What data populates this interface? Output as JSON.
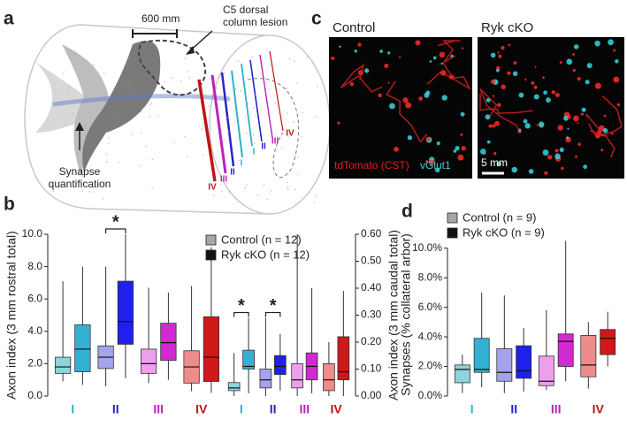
{
  "panel_labels": [
    "a",
    "b",
    "c",
    "d"
  ],
  "panel_a": {
    "scale_label": "600 mm",
    "lesion_label": "C5 dorsal column lesion",
    "synapse_label": "Synapse quantification",
    "section_labels": [
      "IV",
      "III",
      "II",
      "I",
      "I",
      "II",
      "III",
      "IV"
    ]
  },
  "panel_c": {
    "titles": [
      "Control",
      "Ryk cKO"
    ],
    "stain_labels": [
      "tdTomato (CST)",
      "vGlut1"
    ],
    "scale_bar": "5 mm"
  },
  "chart_data": [
    {
      "type": "box",
      "y_label": "Axon index (3 mm rostral total)",
      "y_axis_side": "left",
      "categories": [
        "I",
        "II",
        "III",
        "IV"
      ],
      "category_colors": [
        "#2bb3c6",
        "#2525c8",
        "#bb22bb",
        "#c01414"
      ],
      "ylim": [
        0,
        10
      ],
      "yticks": [
        {
          "value": 0,
          "label": "0.0"
        },
        {
          "value": 2,
          "label": "2.0"
        },
        {
          "value": 4,
          "label": "4.0"
        },
        {
          "value": 6,
          "label": "6.0"
        },
        {
          "value": 8,
          "label": "8.0"
        },
        {
          "value": 10,
          "label": "10.0"
        }
      ],
      "significance": [
        null,
        "*",
        null,
        null
      ],
      "series": [
        {
          "box_colors": [
            "#8fd3dc",
            "#a3a3ee",
            "#ec9fec",
            "#ee8c8c"
          ],
          "values": [
            {
              "min": 0.9,
              "q1": 1.4,
              "median": 1.8,
              "q3": 2.4,
              "max": 7.1
            },
            {
              "min": 0.6,
              "q1": 1.7,
              "median": 2.4,
              "q3": 3.1,
              "max": 8.0
            },
            {
              "min": 0.8,
              "q1": 1.4,
              "median": 2.0,
              "q3": 2.9,
              "max": 6.7
            },
            {
              "min": 0.3,
              "q1": 0.8,
              "median": 1.8,
              "q3": 2.8,
              "max": 6.8
            }
          ]
        },
        {
          "box_colors": [
            "#34b1d2",
            "#2020ee",
            "#d02ad0",
            "#d01818"
          ],
          "values": [
            {
              "min": 0.7,
              "q1": 1.5,
              "median": 2.9,
              "q3": 4.4,
              "max": 8.0
            },
            {
              "min": 1.1,
              "q1": 3.2,
              "median": 4.6,
              "q3": 7.1,
              "max": 10.0
            },
            {
              "min": 1.0,
              "q1": 2.2,
              "median": 3.3,
              "q3": 4.5,
              "max": 6.4
            },
            {
              "min": 0.2,
              "q1": 0.9,
              "median": 2.4,
              "q3": 4.9,
              "max": 9.2
            }
          ]
        }
      ]
    },
    {
      "type": "box",
      "y_label": "Axon index (3 mm caudal total)",
      "y_axis_side": "right",
      "categories": [
        "I",
        "II",
        "III",
        "IV"
      ],
      "category_colors": [
        "#2bb3c6",
        "#2525c8",
        "#bb22bb",
        "#c01414"
      ],
      "ylim": [
        0,
        0.6
      ],
      "yticks": [
        {
          "value": 0,
          "label": "0.00"
        },
        {
          "value": 0.1,
          "label": "0.10"
        },
        {
          "value": 0.2,
          "label": "0.20"
        },
        {
          "value": 0.3,
          "label": "0.30"
        },
        {
          "value": 0.4,
          "label": "0.40"
        },
        {
          "value": 0.5,
          "label": "0.50"
        },
        {
          "value": 0.6,
          "label": "0.60"
        }
      ],
      "significance": [
        "*",
        "*",
        null,
        null
      ],
      "legend": "top-left",
      "series": [
        {
          "name": "Control (n = 12)",
          "color": "#a6a6a6",
          "box_colors": [
            "#8fd3dc",
            "#a3a3ee",
            "#ec9fec",
            "#ee8c8c"
          ],
          "values": [
            {
              "min": 0.0,
              "q1": 0.02,
              "median": 0.03,
              "q3": 0.05,
              "max": 0.16
            },
            {
              "min": 0.0,
              "q1": 0.03,
              "median": 0.06,
              "q3": 0.1,
              "max": 0.29
            },
            {
              "min": 0.0,
              "q1": 0.03,
              "median": 0.06,
              "q3": 0.12,
              "max": 0.6
            },
            {
              "min": 0.0,
              "q1": 0.02,
              "median": 0.06,
              "q3": 0.12,
              "max": 0.2
            }
          ]
        },
        {
          "name": "Ryk cKO (n = 12)",
          "color": "#111111",
          "box_colors": [
            "#34b1d2",
            "#2020ee",
            "#d02ad0",
            "#d01818"
          ],
          "values": [
            {
              "min": 0.01,
              "q1": 0.1,
              "median": 0.11,
              "q3": 0.17,
              "max": 0.29
            },
            {
              "min": 0.02,
              "q1": 0.08,
              "median": 0.11,
              "q3": 0.15,
              "max": 0.23
            },
            {
              "min": 0.01,
              "q1": 0.06,
              "median": 0.11,
              "q3": 0.16,
              "max": 0.4
            },
            {
              "min": 0.0,
              "q1": 0.06,
              "median": 0.09,
              "q3": 0.22,
              "max": 0.39
            }
          ]
        }
      ]
    },
    {
      "type": "box",
      "y_label": "Synapses (% collateral arbor)",
      "y_axis_side": "left",
      "categories": [
        "I",
        "II",
        "III",
        "IV"
      ],
      "category_colors": [
        "#2bb3c6",
        "#2525c8",
        "#bb22bb",
        "#c01414"
      ],
      "ylim": [
        0,
        11
      ],
      "yticks": [
        {
          "value": 0,
          "label": "0.0%"
        },
        {
          "value": 2,
          "label": "2.0%"
        },
        {
          "value": 4,
          "label": "4.0%"
        },
        {
          "value": 6,
          "label": "6.0%"
        },
        {
          "value": 8,
          "label": "8.0%"
        },
        {
          "value": 10,
          "label": "10.0%"
        }
      ],
      "legend": "top-left",
      "series": [
        {
          "name": "Control (n = 9)",
          "color": "#a6a6a6",
          "box_colors": [
            "#8fd3dc",
            "#a3a3ee",
            "#ec9fec",
            "#ee8c8c"
          ],
          "values": [
            {
              "min": 0.2,
              "q1": 0.9,
              "median": 1.8,
              "q3": 2.1,
              "max": 2.8
            },
            {
              "min": 0.2,
              "q1": 1.0,
              "median": 1.6,
              "q3": 3.2,
              "max": 6.8
            },
            {
              "min": 0.4,
              "q1": 0.7,
              "median": 1.0,
              "q3": 2.7,
              "max": 5.8
            },
            {
              "min": 0.5,
              "q1": 1.3,
              "median": 2.1,
              "q3": 4.1,
              "max": 5.0
            }
          ]
        },
        {
          "name": "Ryk cKO (n = 9)",
          "color": "#111111",
          "box_colors": [
            "#34b1d2",
            "#2020ee",
            "#d02ad0",
            "#d01818"
          ],
          "values": [
            {
              "min": 0.6,
              "q1": 1.6,
              "median": 1.8,
              "q3": 3.9,
              "max": 7.0
            },
            {
              "min": 0.3,
              "q1": 1.2,
              "median": 1.7,
              "q3": 3.4,
              "max": 4.6
            },
            {
              "min": 1.0,
              "q1": 2.0,
              "median": 3.7,
              "q3": 4.2,
              "max": 10.5
            },
            {
              "min": 2.0,
              "q1": 2.8,
              "median": 3.9,
              "q3": 4.5,
              "max": 5.7
            }
          ]
        }
      ]
    }
  ]
}
